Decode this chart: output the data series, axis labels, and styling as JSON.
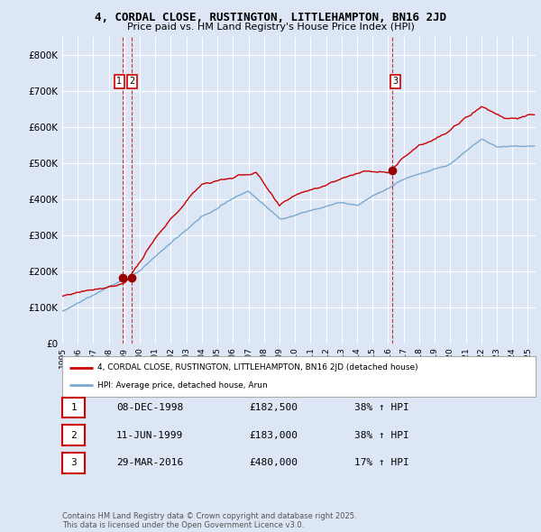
{
  "title_line1": "4, CORDAL CLOSE, RUSTINGTON, LITTLEHAMPTON, BN16 2JD",
  "title_line2": "Price paid vs. HM Land Registry's House Price Index (HPI)",
  "bg_color": "#dce6f5",
  "plot_bg_color": "#dce6f5",
  "grid_color": "#ffffff",
  "red_line_color": "#cc0000",
  "blue_line_color": "#7aaad0",
  "sale_marker_color": "#990000",
  "vline_color": "#cc0000",
  "box_color": "#cc0000",
  "ylim": [
    0,
    850000
  ],
  "yticks": [
    0,
    100000,
    200000,
    300000,
    400000,
    500000,
    600000,
    700000,
    800000
  ],
  "ytick_labels": [
    "£0",
    "£100K",
    "£200K",
    "£300K",
    "£400K",
    "£500K",
    "£600K",
    "£700K",
    "£800K"
  ],
  "xlim_start": 1995.0,
  "xlim_end": 2025.5,
  "sales": [
    {
      "num": 1,
      "year": 1998.92,
      "price": 182500,
      "label": "1"
    },
    {
      "num": 2,
      "year": 1999.45,
      "price": 183000,
      "label": "2"
    },
    {
      "num": 3,
      "year": 2016.24,
      "price": 480000,
      "label": "3"
    }
  ],
  "legend_red_label": "4, CORDAL CLOSE, RUSTINGTON, LITTLEHAMPTON, BN16 2JD (detached house)",
  "legend_blue_label": "HPI: Average price, detached house, Arun",
  "table_rows": [
    {
      "num": "1",
      "date": "08-DEC-1998",
      "price": "£182,500",
      "change": "38% ↑ HPI"
    },
    {
      "num": "2",
      "date": "11-JUN-1999",
      "price": "£183,000",
      "change": "38% ↑ HPI"
    },
    {
      "num": "3",
      "date": "29-MAR-2016",
      "price": "£480,000",
      "change": "17% ↑ HPI"
    }
  ],
  "footnote": "Contains HM Land Registry data © Crown copyright and database right 2025.\nThis data is licensed under the Open Government Licence v3.0."
}
